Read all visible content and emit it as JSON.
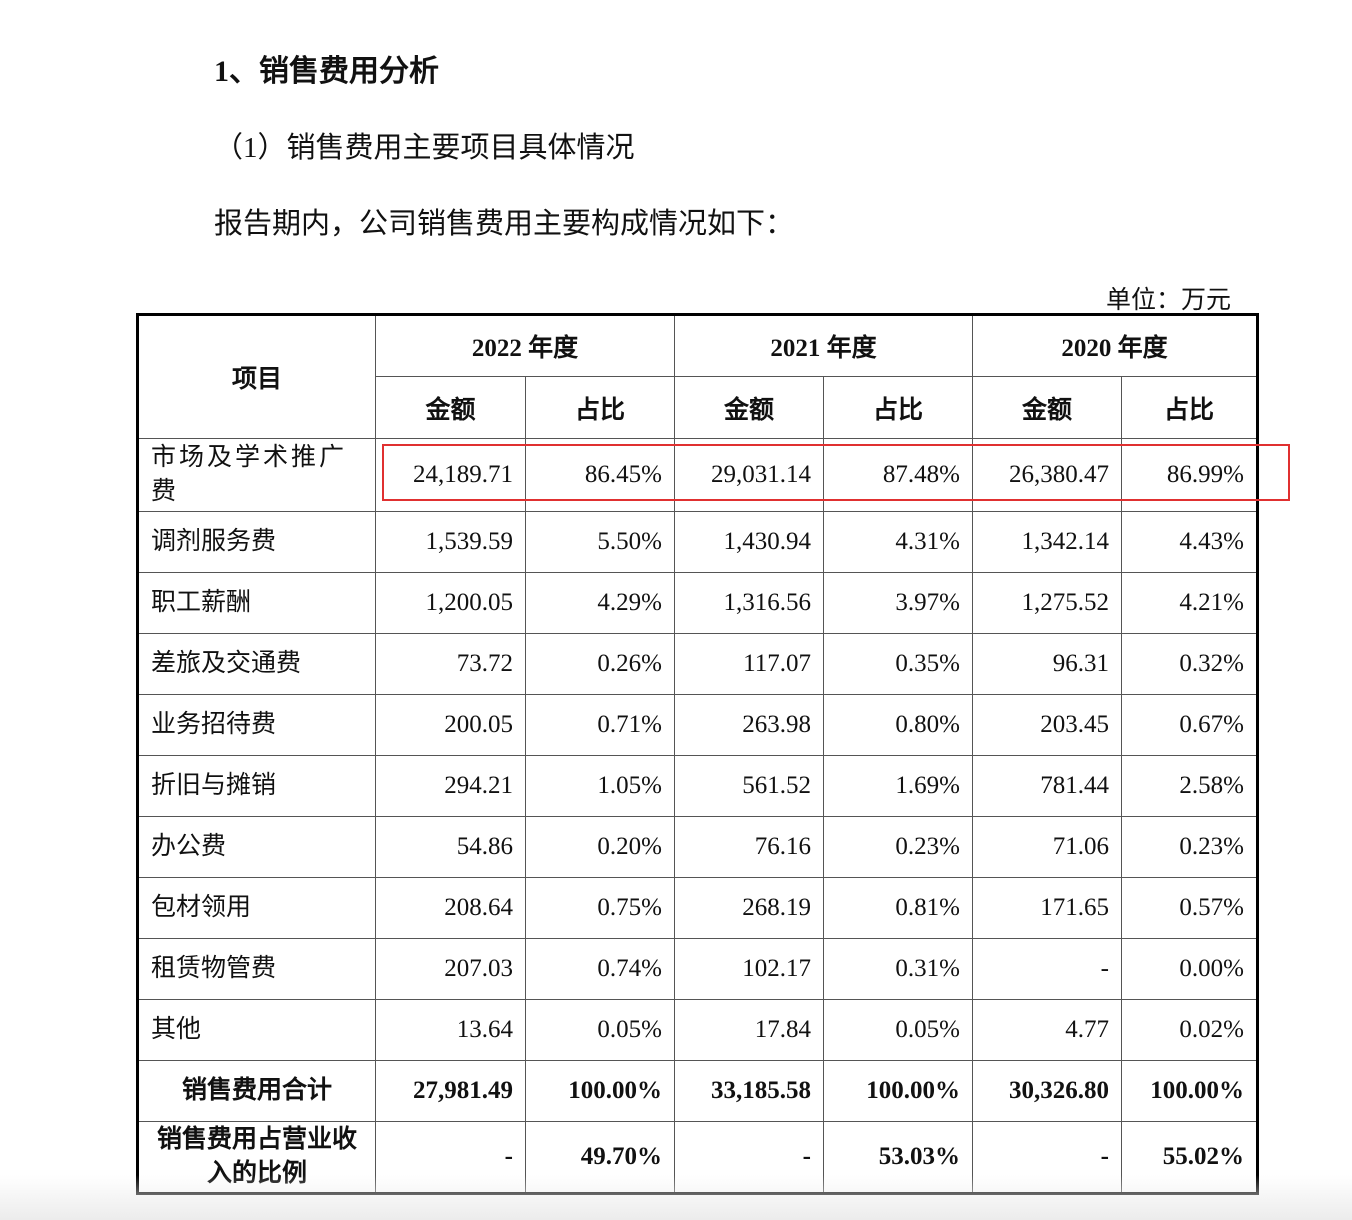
{
  "heading": "1、销售费用分析",
  "subheading": "（1）销售费用主要项目具体情况",
  "intro": "报告期内，公司销售费用主要构成情况如下：",
  "unit": "单位：万元",
  "table": {
    "header": {
      "item": "项目",
      "years": [
        "2022 年度",
        "2021 年度",
        "2020 年度"
      ],
      "columns": [
        "金额",
        "占比",
        "金额",
        "占比",
        "金额",
        "占比"
      ]
    },
    "rows": [
      [
        "市场及学术推广费",
        "24,189.71",
        "86.45%",
        "29,031.14",
        "87.48%",
        "26,380.47",
        "86.99%"
      ],
      [
        "调剂服务费",
        "1,539.59",
        "5.50%",
        "1,430.94",
        "4.31%",
        "1,342.14",
        "4.43%"
      ],
      [
        "职工薪酬",
        "1,200.05",
        "4.29%",
        "1,316.56",
        "3.97%",
        "1,275.52",
        "4.21%"
      ],
      [
        "差旅及交通费",
        "73.72",
        "0.26%",
        "117.07",
        "0.35%",
        "96.31",
        "0.32%"
      ],
      [
        "业务招待费",
        "200.05",
        "0.71%",
        "263.98",
        "0.80%",
        "203.45",
        "0.67%"
      ],
      [
        "折旧与摊销",
        "294.21",
        "1.05%",
        "561.52",
        "1.69%",
        "781.44",
        "2.58%"
      ],
      [
        "办公费",
        "54.86",
        "0.20%",
        "76.16",
        "0.23%",
        "71.06",
        "0.23%"
      ],
      [
        "包材领用",
        "208.64",
        "0.75%",
        "268.19",
        "0.81%",
        "171.65",
        "0.57%"
      ],
      [
        "租赁物管费",
        "207.03",
        "0.74%",
        "102.17",
        "0.31%",
        "-",
        "0.00%"
      ],
      [
        "其他",
        "13.64",
        "0.05%",
        "17.84",
        "0.05%",
        "4.77",
        "0.02%"
      ],
      [
        "销售费用合计",
        "27,981.49",
        "100.00%",
        "33,185.58",
        "100.00%",
        "30,326.80",
        "100.00%"
      ],
      [
        "销售费用占营业收入的比例",
        "-",
        "49.70%",
        "-",
        "53.03%",
        "-",
        "55.02%"
      ]
    ]
  }
}
